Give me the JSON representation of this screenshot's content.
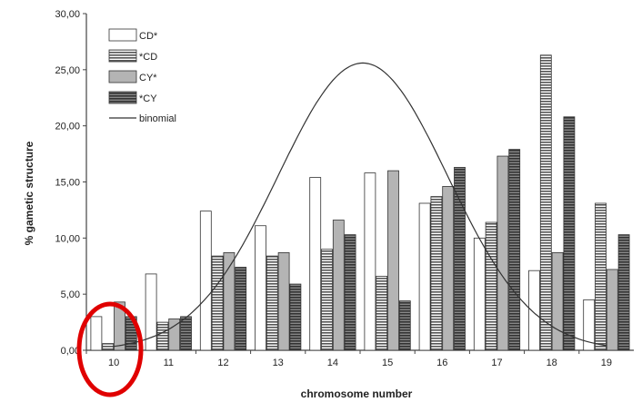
{
  "chart_data": {
    "type": "bar",
    "title": "",
    "xlabel": "chromosome number",
    "ylabel": "% gametic structure",
    "ylim": [
      0,
      30
    ],
    "yticks": [
      "0,00",
      "5,00",
      "10,00",
      "15,00",
      "20,00",
      "25,00",
      "30,00"
    ],
    "categories": [
      "10",
      "11",
      "12",
      "13",
      "14",
      "15",
      "16",
      "17",
      "18",
      "19"
    ],
    "series": [
      {
        "name": "CD*",
        "pattern": "white",
        "values": [
          3.0,
          6.8,
          12.4,
          11.1,
          15.4,
          15.8,
          13.1,
          10.0,
          7.1,
          4.5
        ]
      },
      {
        "name": "*CD",
        "pattern": "hatch",
        "values": [
          0.6,
          2.5,
          8.4,
          8.4,
          9.0,
          6.6,
          13.7,
          11.4,
          26.3,
          13.1
        ]
      },
      {
        "name": "CY*",
        "pattern": "gray",
        "values": [
          4.3,
          2.8,
          8.7,
          8.7,
          11.6,
          16.0,
          14.6,
          17.3,
          8.7,
          7.2
        ]
      },
      {
        "name": "*CY",
        "pattern": "darkhatch",
        "values": [
          3.0,
          3.0,
          7.4,
          5.9,
          10.3,
          4.4,
          16.3,
          17.9,
          20.8,
          10.3
        ]
      }
    ],
    "line": {
      "name": "binomial",
      "mean": 14.55,
      "sd": 1.55,
      "peak": 25.6
    },
    "legend_position": "top-left",
    "grid": false,
    "annotations": [
      {
        "type": "ellipse",
        "target_category": "10",
        "color": "#e00000"
      }
    ]
  }
}
